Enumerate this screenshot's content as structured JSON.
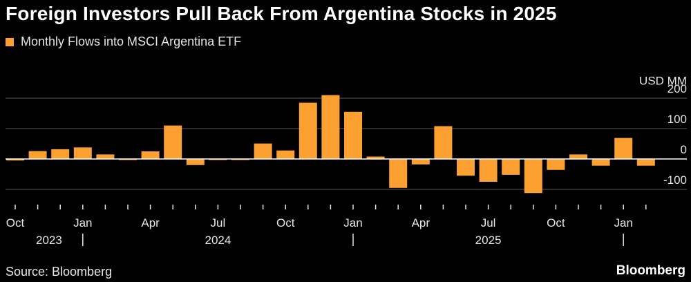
{
  "title": "Foreign Investors Pull Back From Argentina Stocks in 2025",
  "source": "Source: Bloomberg",
  "brand": "Bloomberg",
  "colors": {
    "background": "#000000",
    "bar": "#fca131",
    "gridline": "#5a5a5a",
    "zero_line": "#ffffff",
    "text": "#e6e6e6"
  },
  "chart_data": {
    "type": "bar",
    "series": [
      {
        "name": "Monthly Flows into MSCI Argentina ETF",
        "categories": [
          "2023-10",
          "2023-11",
          "2023-12",
          "2024-01",
          "2024-02",
          "2024-03",
          "2024-04",
          "2024-05",
          "2024-06",
          "2024-07",
          "2024-08",
          "2024-09",
          "2024-10",
          "2024-11",
          "2024-12",
          "2025-01",
          "2025-02",
          "2025-03",
          "2025-04",
          "2025-05",
          "2025-06",
          "2025-07",
          "2025-08",
          "2025-09",
          "2025-10",
          "2025-11",
          "2025-12",
          "2026-01",
          "2026-02"
        ],
        "values": [
          -5,
          26,
          32,
          38,
          15,
          -2,
          25,
          110,
          -20,
          -2,
          -2,
          51,
          28,
          185,
          210,
          155,
          8,
          -95,
          -18,
          108,
          -55,
          -75,
          -52,
          -112,
          -36,
          15,
          -22,
          69,
          -22
        ]
      }
    ],
    "ylabel": "USD MM",
    "ylim": [
      -140,
      240
    ],
    "yticks": [
      200,
      100,
      0,
      -100
    ],
    "xticks": [
      {
        "date": "2023-10",
        "label": "Oct"
      },
      {
        "date": "2024-01",
        "label": "Jan"
      },
      {
        "date": "2024-04",
        "label": "Apr"
      },
      {
        "date": "2024-07",
        "label": "Jul"
      },
      {
        "date": "2024-10",
        "label": "Oct"
      },
      {
        "date": "2025-01",
        "label": "Jan"
      },
      {
        "date": "2025-04",
        "label": "Apr"
      },
      {
        "date": "2025-07",
        "label": "Jul"
      },
      {
        "date": "2025-10",
        "label": "Oct"
      },
      {
        "date": "2026-01",
        "label": "Jan"
      }
    ],
    "years": [
      {
        "label": "2023"
      },
      {
        "label": "2024"
      },
      {
        "label": "2025"
      }
    ],
    "grid": true,
    "legend_position": "top-left"
  }
}
